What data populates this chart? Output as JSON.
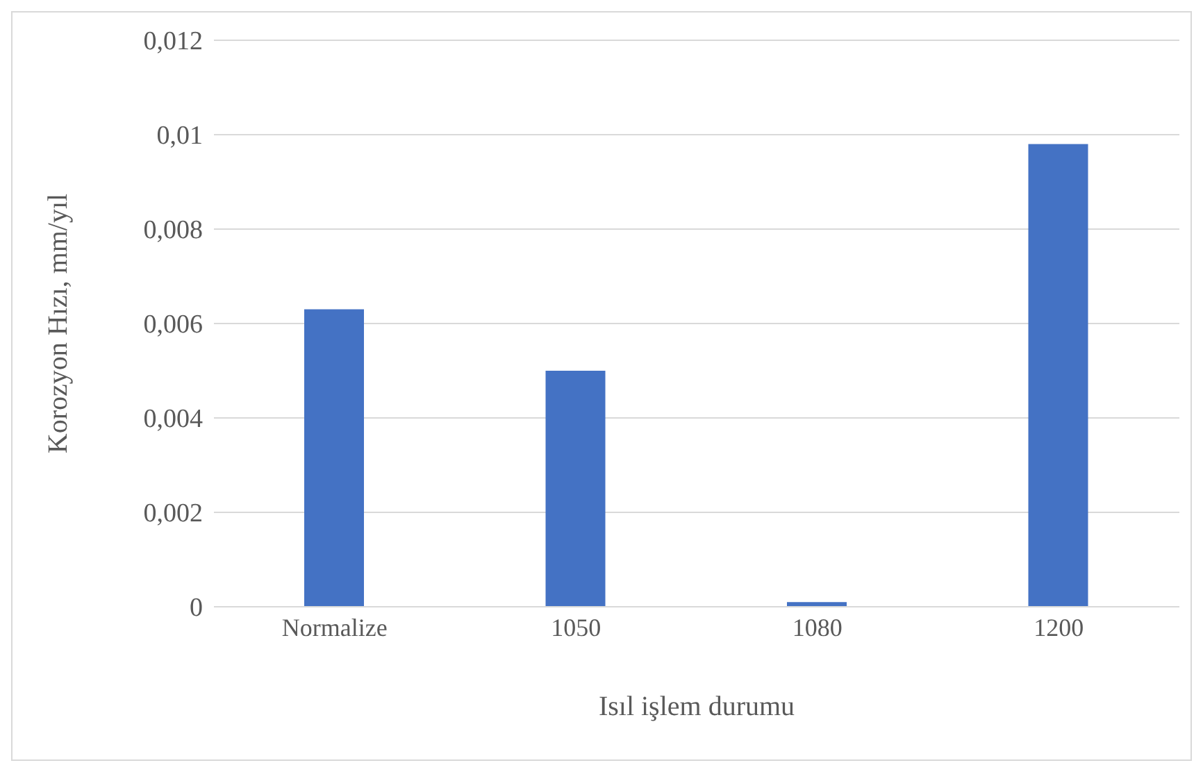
{
  "chart_data": {
    "type": "bar",
    "xlabel": "Isıl işlem durumu",
    "ylabel": "Korozyon Hızı, mm/yıl",
    "categories": [
      "Normalize",
      "1050",
      "1080",
      "1200"
    ],
    "values": [
      0.0063,
      0.005,
      0.0001,
      0.0098
    ],
    "color": "#4472c4",
    "ylim": [
      0,
      0.012
    ],
    "yticks": [
      0,
      {
        "value": 0.002,
        "label": "0,002"
      },
      {
        "value": 0.004,
        "label": "0,004"
      },
      {
        "value": 0.006,
        "label": "0,006"
      },
      {
        "value": 0.008,
        "label": "0,008"
      },
      {
        "value": 0.01,
        "label": "0,01"
      },
      {
        "value": 0.012,
        "label": "0,012"
      }
    ],
    "grid": "y"
  }
}
